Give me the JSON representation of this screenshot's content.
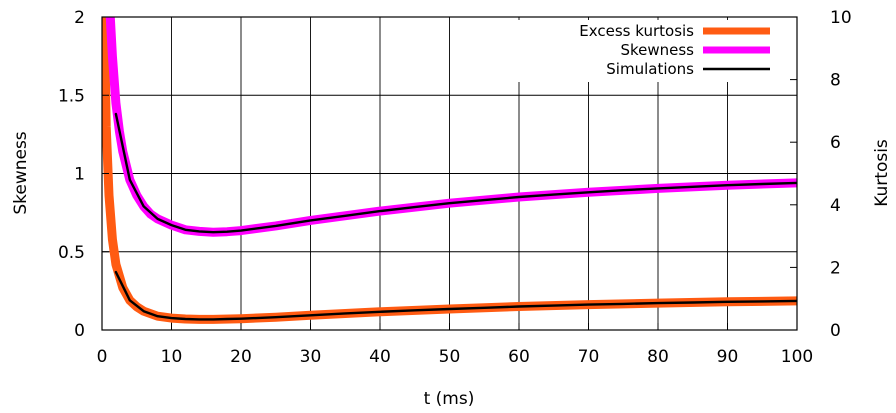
{
  "chart_data": {
    "type": "line",
    "xlabel": "t (ms)",
    "ylabel_left": "Skewness",
    "ylabel_right": "Kurtosis",
    "xlim": [
      0,
      100
    ],
    "ylim_left": [
      0,
      2
    ],
    "ylim_right": [
      0,
      10
    ],
    "x_ticks": [
      "0",
      "10",
      "20",
      "30",
      "40",
      "50",
      "60",
      "70",
      "80",
      "90",
      "100"
    ],
    "y_ticks_left": [
      "0",
      "0.5",
      "1",
      "1.5",
      "2"
    ],
    "y_ticks_right": [
      "0",
      "2",
      "4",
      "6",
      "8",
      "10"
    ],
    "grid": true,
    "legend_position": "top-right",
    "series": [
      {
        "name": "Excess kurtosis",
        "axis": "right",
        "color": "#ff5b12",
        "x": [
          0.3,
          0.6,
          1,
          1.5,
          2,
          3,
          4,
          5,
          6,
          8,
          10,
          12,
          14,
          16,
          20,
          25,
          30,
          40,
          50,
          60,
          70,
          80,
          90,
          100
        ],
        "values": [
          10.5,
          6.5,
          4.3,
          2.9,
          2.1,
          1.35,
          0.95,
          0.74,
          0.6,
          0.44,
          0.38,
          0.35,
          0.34,
          0.34,
          0.36,
          0.41,
          0.47,
          0.58,
          0.67,
          0.75,
          0.81,
          0.86,
          0.9,
          0.93
        ]
      },
      {
        "name": "Skewness",
        "axis": "left",
        "color": "#ff00ff",
        "x": [
          0.5,
          1,
          1.5,
          2,
          2.5,
          3,
          4,
          5,
          6,
          7,
          8,
          10,
          12,
          14,
          16,
          18,
          20,
          25,
          30,
          40,
          50,
          60,
          70,
          80,
          90,
          100
        ],
        "values": [
          2.5,
          2.15,
          1.75,
          1.45,
          1.27,
          1.14,
          0.96,
          0.86,
          0.79,
          0.74,
          0.71,
          0.67,
          0.64,
          0.63,
          0.625,
          0.628,
          0.635,
          0.665,
          0.7,
          0.76,
          0.81,
          0.85,
          0.88,
          0.905,
          0.925,
          0.94
        ]
      },
      {
        "name": "Simulations",
        "axis": "left",
        "color": "#000000",
        "x": [
          2,
          4,
          6,
          8,
          10,
          12,
          14,
          16,
          18,
          20,
          25,
          30,
          35,
          40,
          45,
          50,
          55,
          60,
          65,
          70,
          75,
          80,
          85,
          90,
          95,
          100
        ],
        "values": [
          1.38,
          0.96,
          0.79,
          0.71,
          0.67,
          0.64,
          0.63,
          0.625,
          0.628,
          0.635,
          0.665,
          0.7,
          0.73,
          0.76,
          0.785,
          0.81,
          0.83,
          0.85,
          0.865,
          0.88,
          0.893,
          0.905,
          0.915,
          0.925,
          0.933,
          0.94
        ]
      },
      {
        "name": "Simulations",
        "axis": "right",
        "color": "#000000",
        "x": [
          2,
          4,
          6,
          8,
          10,
          12,
          14,
          16,
          18,
          20,
          25,
          30,
          35,
          40,
          45,
          50,
          55,
          60,
          65,
          70,
          75,
          80,
          85,
          90,
          95,
          100
        ],
        "values": [
          1.85,
          0.95,
          0.6,
          0.44,
          0.38,
          0.35,
          0.34,
          0.34,
          0.35,
          0.36,
          0.41,
          0.47,
          0.53,
          0.58,
          0.63,
          0.67,
          0.71,
          0.75,
          0.78,
          0.81,
          0.835,
          0.86,
          0.88,
          0.9,
          0.915,
          0.93
        ]
      }
    ]
  }
}
